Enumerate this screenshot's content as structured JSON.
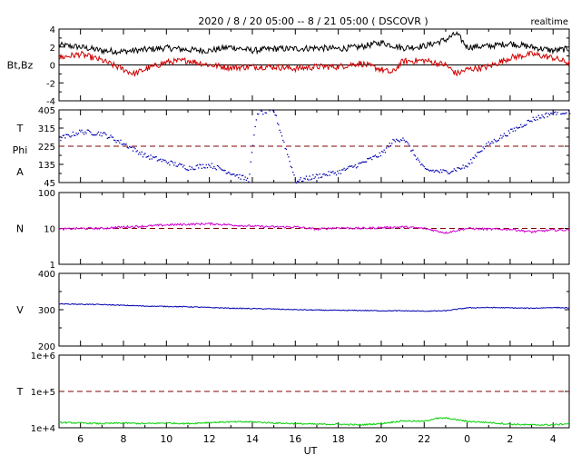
{
  "header": {
    "title": "2020 / 8 / 20   05:00 -- 8 / 21   05:00 ( DSCOVR )",
    "badge": "realtime"
  },
  "x_axis": {
    "label": "UT",
    "ticks": [
      "6",
      "8",
      "10",
      "12",
      "14",
      "16",
      "18",
      "20",
      "22",
      "0",
      "2",
      "4"
    ],
    "range_hours": [
      5.0,
      28.75
    ]
  },
  "colors": {
    "black": "#000000",
    "red": "#d00000",
    "blue": "#0000b0",
    "magenta": "#d000d0",
    "green": "#00d000",
    "dashed_ref": "#800000"
  },
  "chart_data": [
    {
      "id": "mag",
      "type": "line",
      "ylabel": "Bt,Bz",
      "ylim": [
        -4,
        4
      ],
      "yticks": [
        "4",
        "2",
        "0",
        "-2",
        "-4"
      ],
      "zero_line": 0,
      "series": [
        {
          "name": "Bt",
          "color": "#000000",
          "x": [
            5.0,
            6.0,
            7.0,
            8.0,
            9.0,
            10.0,
            11.0,
            12.0,
            13.0,
            14.0,
            15.0,
            16.0,
            17.0,
            18.0,
            19.0,
            20.0,
            21.0,
            22.0,
            23.0,
            23.5,
            24.0,
            25.0,
            26.0,
            27.0,
            28.0,
            28.75
          ],
          "y": [
            2.2,
            2.0,
            1.6,
            1.5,
            1.7,
            1.9,
            1.7,
            1.6,
            2.0,
            1.6,
            1.8,
            1.8,
            1.9,
            1.8,
            2.0,
            2.5,
            1.9,
            2.1,
            2.8,
            3.5,
            2.0,
            2.1,
            2.4,
            2.0,
            1.6,
            1.8
          ]
        },
        {
          "name": "Bz",
          "color": "#d00000",
          "x": [
            5.0,
            6.0,
            7.0,
            8.0,
            8.5,
            9.0,
            10.0,
            11.0,
            12.0,
            13.0,
            14.0,
            15.0,
            16.0,
            17.0,
            18.0,
            19.0,
            20.0,
            20.5,
            21.0,
            22.0,
            23.0,
            23.5,
            24.0,
            25.0,
            26.0,
            27.0,
            28.0,
            28.75
          ],
          "y": [
            0.8,
            1.2,
            0.5,
            -0.5,
            -1.0,
            -0.5,
            0.3,
            0.5,
            0.0,
            -0.3,
            -0.2,
            -0.2,
            -0.4,
            -0.2,
            -0.2,
            0.2,
            -0.5,
            -0.9,
            0.4,
            0.5,
            0.0,
            -1.0,
            -0.5,
            -0.2,
            0.8,
            1.2,
            0.8,
            0.2
          ]
        }
      ]
    },
    {
      "id": "phi",
      "type": "scatter",
      "ylabel_lines": [
        "T",
        "Phi",
        "A"
      ],
      "ylim": [
        45,
        405
      ],
      "yticks": [
        "405",
        "315",
        "225",
        "135",
        "45"
      ],
      "reference": 225,
      "series": [
        {
          "name": "Phi",
          "color": "#0000b0",
          "x": [
            5.0,
            6.0,
            7.0,
            8.0,
            9.0,
            10.0,
            11.0,
            12.0,
            13.0,
            13.8,
            14.2,
            15.0,
            16.0,
            17.0,
            18.0,
            19.0,
            20.0,
            20.5,
            20.8,
            21.0,
            22.0,
            23.0,
            24.0,
            24.5,
            25.0,
            26.0,
            27.0,
            28.0,
            28.75
          ],
          "y": [
            265,
            300,
            290,
            240,
            180,
            150,
            120,
            135,
            95,
            60,
            395,
            400,
            55,
            80,
            100,
            140,
            190,
            250,
            260,
            270,
            110,
            100,
            130,
            200,
            240,
            300,
            360,
            395,
            400
          ]
        }
      ]
    },
    {
      "id": "density",
      "type": "line",
      "ylabel": "N",
      "scale": "log",
      "ylim": [
        1,
        100
      ],
      "yticks": [
        "100",
        "10",
        "1"
      ],
      "reference": 10,
      "series": [
        {
          "name": "N",
          "color": "#d000d0",
          "x": [
            5.0,
            6.0,
            7.0,
            8.0,
            9.0,
            10.0,
            11.0,
            12.0,
            13.0,
            14.0,
            15.0,
            16.0,
            17.0,
            18.0,
            19.0,
            20.0,
            21.0,
            22.0,
            23.0,
            24.0,
            25.0,
            26.0,
            27.0,
            28.0,
            28.75
          ],
          "y": [
            9.5,
            10.0,
            10.0,
            11.0,
            11.5,
            12.5,
            13.0,
            13.5,
            12.5,
            11.5,
            11.0,
            11.0,
            9.5,
            10.5,
            10.0,
            10.5,
            11.0,
            10.0,
            7.5,
            10.0,
            9.5,
            9.5,
            8.0,
            9.0,
            9.0
          ]
        }
      ]
    },
    {
      "id": "speed",
      "type": "line",
      "ylabel": "V",
      "ylim": [
        200,
        400
      ],
      "yticks": [
        "400",
        "300",
        "200"
      ],
      "series": [
        {
          "name": "V",
          "color": "#0000b0",
          "x": [
            5.0,
            6.0,
            7.0,
            8.0,
            9.0,
            10.0,
            11.0,
            12.0,
            13.0,
            14.0,
            15.0,
            16.0,
            17.0,
            18.0,
            19.0,
            20.0,
            21.0,
            22.0,
            23.0,
            24.0,
            25.0,
            26.0,
            27.0,
            28.0,
            28.75
          ],
          "y": [
            316,
            315,
            314,
            312,
            310,
            309,
            308,
            306,
            304,
            303,
            302,
            300,
            299,
            298,
            298,
            297,
            297,
            296,
            297,
            305,
            306,
            305,
            304,
            306,
            305
          ]
        }
      ]
    },
    {
      "id": "temperature",
      "type": "line",
      "ylabel": "T",
      "scale": "log",
      "ylim": [
        10000,
        1000000
      ],
      "yticks": [
        "1e+6",
        "1e+5",
        "1e+4"
      ],
      "reference": 100000,
      "series": [
        {
          "name": "T",
          "color": "#00d000",
          "x": [
            5.0,
            6.0,
            7.0,
            8.0,
            9.0,
            10.0,
            11.0,
            12.0,
            13.0,
            14.0,
            15.0,
            16.0,
            17.0,
            18.0,
            19.0,
            20.0,
            21.0,
            22.0,
            22.5,
            23.0,
            24.0,
            25.0,
            26.0,
            27.0,
            28.0,
            28.75
          ],
          "y": [
            14000,
            13500,
            13000,
            13500,
            13000,
            13500,
            13000,
            14000,
            14500,
            14500,
            13500,
            13000,
            12500,
            12500,
            12000,
            13000,
            15500,
            15000,
            18000,
            18500,
            15000,
            14000,
            12500,
            12000,
            12000,
            13000
          ]
        }
      ]
    }
  ]
}
